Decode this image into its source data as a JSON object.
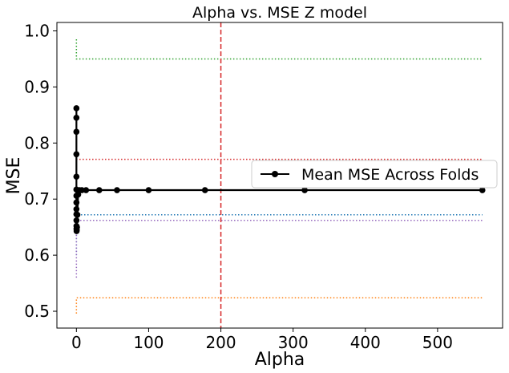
{
  "chart_data": {
    "type": "line",
    "title": "Alpha vs. MSE Z model",
    "xlabel": "Alpha",
    "ylabel": "MSE",
    "xlim": [
      -27,
      590
    ],
    "ylim": [
      0.47,
      1.015
    ],
    "xticks": [
      0,
      100,
      200,
      300,
      400,
      500
    ],
    "yticks": [
      0.5,
      0.6,
      0.7,
      0.8,
      0.9,
      1.0
    ],
    "xtick_labels": [
      "0",
      "100",
      "200",
      "300",
      "400",
      "500"
    ],
    "ytick_labels": [
      "0.5",
      "0.6",
      "0.7",
      "0.8",
      "0.9",
      "1.0"
    ],
    "grid": false,
    "legend_position": "center-right",
    "series": [
      {
        "name": "Mean MSE Across Folds",
        "color": "#000000",
        "style": "solid",
        "marker": "circle",
        "x": [
          0.0001,
          0.0002,
          0.0004,
          0.0007,
          0.0013,
          0.0024,
          0.0042,
          0.0075,
          0.0133,
          0.0237,
          0.0422,
          0.075,
          0.133,
          0.237,
          0.422,
          0.75,
          1.33,
          2.37,
          4.22,
          7.5,
          13.3,
          31.6,
          56.2,
          100,
          178,
          316,
          562
        ],
        "values": [
          0.862,
          0.845,
          0.82,
          0.78,
          0.74,
          0.717,
          0.706,
          0.694,
          0.682,
          0.673,
          0.662,
          0.652,
          0.647,
          0.643,
          0.645,
          0.65,
          0.672,
          0.708,
          0.716,
          0.716,
          0.716,
          0.716,
          0.716,
          0.716,
          0.716,
          0.716,
          0.716
        ]
      },
      {
        "color": "#2ca02c",
        "style": "dotted",
        "x": [
          0.0001,
          0.0002,
          0.0004,
          0.0007,
          0.0013,
          0.0024,
          0.0042,
          0.0075,
          0.0133,
          0.0237,
          0.0422,
          0.075,
          0.133,
          0.237,
          0.422,
          0.75,
          1.33,
          2.37,
          4.22,
          7.5,
          13.3,
          31.6,
          56.2,
          100,
          178,
          316,
          562
        ],
        "values": [
          0.985,
          0.982,
          0.978,
          0.972,
          0.966,
          0.96,
          0.956,
          0.953,
          0.952,
          0.951,
          0.95,
          0.95,
          0.95,
          0.95,
          0.95,
          0.95,
          0.95,
          0.95,
          0.95,
          0.95,
          0.95,
          0.95,
          0.95,
          0.95,
          0.95,
          0.95,
          0.95
        ]
      },
      {
        "color": "#d62728",
        "style": "dotted",
        "x": [
          0.0001,
          0.0002,
          0.0004,
          0.0007,
          0.0013,
          0.0024,
          0.0042,
          0.0075,
          0.0133,
          0.0237,
          0.0422,
          0.075,
          0.133,
          0.237,
          0.422,
          0.75,
          1.33,
          2.37,
          4.22,
          7.5,
          13.3,
          31.6,
          56.2,
          100,
          178,
          316,
          562
        ],
        "values": [
          0.8,
          0.79,
          0.78,
          0.775,
          0.772,
          0.771,
          0.771,
          0.771,
          0.771,
          0.771,
          0.771,
          0.771,
          0.771,
          0.771,
          0.771,
          0.771,
          0.771,
          0.771,
          0.771,
          0.771,
          0.771,
          0.771,
          0.771,
          0.771,
          0.771,
          0.771,
          0.771
        ]
      },
      {
        "color": "#1f77b4",
        "style": "dotted",
        "x": [
          0.0001,
          0.0002,
          0.0004,
          0.0007,
          0.0013,
          0.0024,
          0.0042,
          0.0075,
          0.0133,
          0.0237,
          0.0422,
          0.075,
          0.133,
          0.237,
          0.422,
          0.75,
          1.33,
          2.37,
          4.22,
          7.5,
          13.3,
          31.6,
          56.2,
          100,
          178,
          316,
          562
        ],
        "values": [
          0.6,
          0.62,
          0.64,
          0.655,
          0.665,
          0.67,
          0.672,
          0.672,
          0.672,
          0.672,
          0.672,
          0.672,
          0.672,
          0.672,
          0.672,
          0.672,
          0.672,
          0.672,
          0.672,
          0.672,
          0.672,
          0.672,
          0.672,
          0.672,
          0.672,
          0.672,
          0.672
        ]
      },
      {
        "color": "#9467bd",
        "style": "dotted",
        "x": [
          0.0001,
          0.0002,
          0.0004,
          0.0007,
          0.0013,
          0.0024,
          0.0042,
          0.0075,
          0.0133,
          0.0237,
          0.0422,
          0.075,
          0.133,
          0.237,
          0.422,
          0.75,
          1.33,
          2.37,
          4.22,
          7.5,
          13.3,
          31.6,
          56.2,
          100,
          178,
          316,
          562
        ],
        "values": [
          0.56,
          0.58,
          0.6,
          0.62,
          0.64,
          0.655,
          0.66,
          0.662,
          0.662,
          0.662,
          0.662,
          0.662,
          0.662,
          0.662,
          0.662,
          0.662,
          0.662,
          0.662,
          0.662,
          0.662,
          0.662,
          0.662,
          0.662,
          0.662,
          0.662,
          0.662,
          0.662
        ]
      },
      {
        "color": "#ff7f0e",
        "style": "dotted",
        "x": [
          0.0001,
          0.0002,
          0.0004,
          0.0007,
          0.0013,
          0.0024,
          0.0042,
          0.0075,
          0.0133,
          0.0237,
          0.0422,
          0.075,
          0.133,
          0.237,
          0.422,
          0.75,
          1.33,
          2.37,
          4.22,
          7.5,
          13.3,
          31.6,
          56.2,
          100,
          178,
          316,
          562
        ],
        "values": [
          0.496,
          0.505,
          0.515,
          0.52,
          0.522,
          0.523,
          0.524,
          0.524,
          0.524,
          0.524,
          0.524,
          0.524,
          0.524,
          0.524,
          0.524,
          0.524,
          0.524,
          0.524,
          0.524,
          0.524,
          0.524,
          0.524,
          0.524,
          0.524,
          0.524,
          0.524,
          0.524
        ]
      }
    ],
    "vlines": [
      {
        "x": 200,
        "color": "#d62728",
        "style": "dashed"
      }
    ]
  }
}
